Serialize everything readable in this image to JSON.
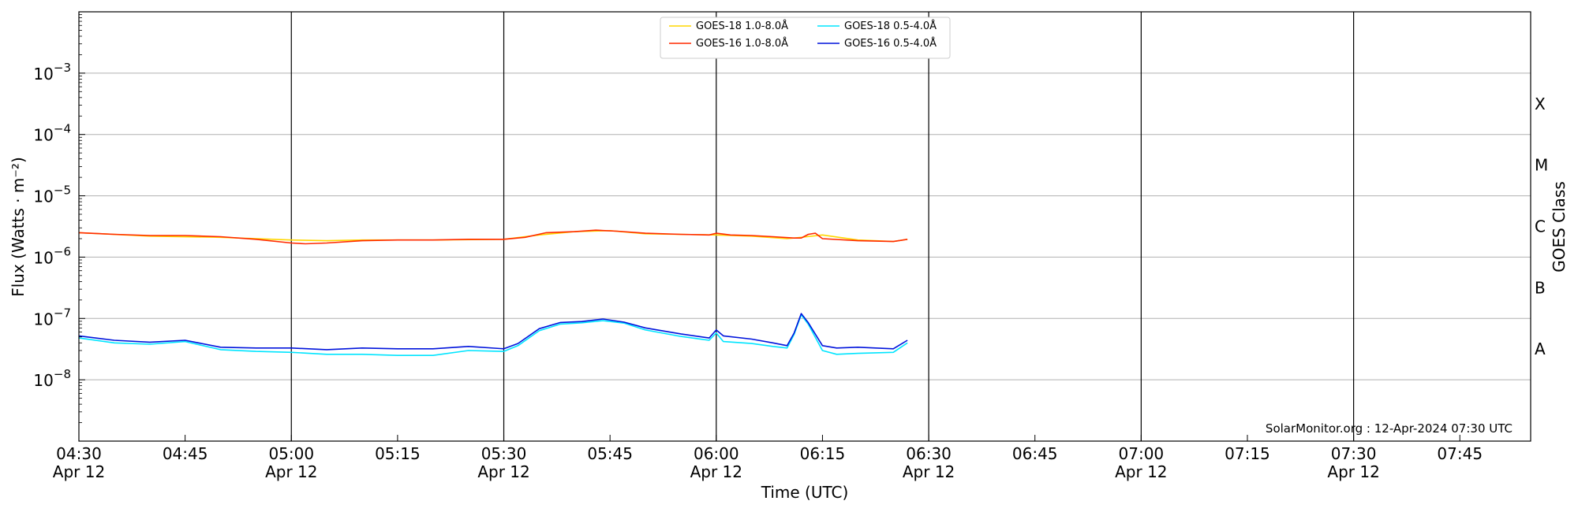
{
  "chart_data": {
    "type": "line",
    "xlabel": "Time (UTC)",
    "ylabel": "Flux (Watts · m⁻²)",
    "y2label": "GOES Class",
    "yscale": "log",
    "ylim": [
      1e-09,
      0.01
    ],
    "xlim": [
      "04:30",
      "07:55"
    ],
    "x_ticks": [
      {
        "time": "04:30",
        "line1": "04:30",
        "line2": "Apr 12"
      },
      {
        "time": "04:45",
        "line1": "04:45",
        "line2": ""
      },
      {
        "time": "05:00",
        "line1": "05:00",
        "line2": "Apr 12"
      },
      {
        "time": "05:15",
        "line1": "05:15",
        "line2": ""
      },
      {
        "time": "05:30",
        "line1": "05:30",
        "line2": "Apr 12"
      },
      {
        "time": "05:45",
        "line1": "05:45",
        "line2": ""
      },
      {
        "time": "06:00",
        "line1": "06:00",
        "line2": "Apr 12"
      },
      {
        "time": "06:15",
        "line1": "06:15",
        "line2": ""
      },
      {
        "time": "06:30",
        "line1": "06:30",
        "line2": "Apr 12"
      },
      {
        "time": "06:45",
        "line1": "06:45",
        "line2": ""
      },
      {
        "time": "07:00",
        "line1": "07:00",
        "line2": "Apr 12"
      },
      {
        "time": "07:15",
        "line1": "07:15",
        "line2": ""
      },
      {
        "time": "07:30",
        "line1": "07:30",
        "line2": "Apr 12"
      },
      {
        "time": "07:45",
        "line1": "07:45",
        "line2": ""
      }
    ],
    "y_ticks": [
      {
        "value": 1e-08,
        "mantissa": "10",
        "exp": "−8"
      },
      {
        "value": 1e-07,
        "mantissa": "10",
        "exp": "−7"
      },
      {
        "value": 1e-06,
        "mantissa": "10",
        "exp": "−6"
      },
      {
        "value": 1e-05,
        "mantissa": "10",
        "exp": "−5"
      },
      {
        "value": 0.0001,
        "mantissa": "10",
        "exp": "−4"
      },
      {
        "value": 0.001,
        "mantissa": "10",
        "exp": "−3"
      }
    ],
    "goes_classes": [
      {
        "label": "A",
        "value": 3.16e-08
      },
      {
        "label": "B",
        "value": 3.16e-07
      },
      {
        "label": "C",
        "value": 3.16e-06
      },
      {
        "label": "M",
        "value": 3.16e-05
      },
      {
        "label": "X",
        "value": 0.000316
      }
    ],
    "vertical_lines": [
      "05:00",
      "05:30",
      "06:00",
      "06:30",
      "07:00",
      "07:30"
    ],
    "grid": "horizontal",
    "legend_position": "top-center",
    "credit": "SolarMonitor.org : 12-Apr-2024 07:30 UTC",
    "series": [
      {
        "name": "GOES-18 1.0-8.0Å",
        "color": "#ffd700",
        "x": [
          "04:30",
          "04:40",
          "04:50",
          "05:00",
          "05:05",
          "05:10",
          "05:20",
          "05:30",
          "05:35",
          "05:40",
          "05:45",
          "05:50",
          "06:00",
          "06:05",
          "06:10",
          "06:12",
          "06:15",
          "06:20",
          "06:25",
          "06:27"
        ],
        "values": [
          2.5e-06,
          2.2e-06,
          2.1e-06,
          1.9e-06,
          1.85e-06,
          1.9e-06,
          1.9e-06,
          1.95e-06,
          2.3e-06,
          2.6e-06,
          2.7e-06,
          2.4e-06,
          2.3e-06,
          2.2e-06,
          2e-06,
          2.1e-06,
          2.3e-06,
          1.9e-06,
          1.8e-06,
          1.95e-06
        ]
      },
      {
        "name": "GOES-16 1.0-8.0Å",
        "color": "#ff2a00",
        "x": [
          "04:30",
          "04:35",
          "04:40",
          "04:45",
          "04:50",
          "04:55",
          "05:00",
          "05:02",
          "05:05",
          "05:10",
          "05:15",
          "05:20",
          "05:25",
          "05:30",
          "05:33",
          "05:36",
          "05:40",
          "05:43",
          "05:46",
          "05:50",
          "05:55",
          "05:59",
          "06:00",
          "06:02",
          "06:05",
          "06:08",
          "06:11",
          "06:12",
          "06:13",
          "06:14",
          "06:15",
          "06:20",
          "06:25",
          "06:27"
        ],
        "values": [
          2.5e-06,
          2.35e-06,
          2.25e-06,
          2.25e-06,
          2.15e-06,
          1.95e-06,
          1.7e-06,
          1.65e-06,
          1.7e-06,
          1.85e-06,
          1.9e-06,
          1.9e-06,
          1.95e-06,
          1.95e-06,
          2.1e-06,
          2.5e-06,
          2.6e-06,
          2.75e-06,
          2.65e-06,
          2.45e-06,
          2.35e-06,
          2.3e-06,
          2.45e-06,
          2.3e-06,
          2.25e-06,
          2.15e-06,
          2.05e-06,
          2.05e-06,
          2.35e-06,
          2.45e-06,
          2e-06,
          1.85e-06,
          1.8e-06,
          1.95e-06
        ]
      },
      {
        "name": "GOES-18 0.5-4.0Å",
        "color": "#00e5ff",
        "x": [
          "04:30",
          "04:35",
          "04:40",
          "04:45",
          "04:50",
          "04:55",
          "05:00",
          "05:05",
          "05:10",
          "05:15",
          "05:20",
          "05:25",
          "05:30",
          "05:32",
          "05:35",
          "05:38",
          "05:41",
          "05:44",
          "05:47",
          "05:50",
          "05:55",
          "05:59",
          "06:00",
          "06:01",
          "06:05",
          "06:08",
          "06:10",
          "06:11",
          "06:12",
          "06:13",
          "06:15",
          "06:17",
          "06:20",
          "06:25",
          "06:27"
        ],
        "values": [
          4.8e-08,
          4e-08,
          3.8e-08,
          4.2e-08,
          3.1e-08,
          2.9e-08,
          2.8e-08,
          2.6e-08,
          2.6e-08,
          2.5e-08,
          2.5e-08,
          3e-08,
          2.9e-08,
          3.6e-08,
          6.3e-08,
          8.1e-08,
          8.5e-08,
          9.2e-08,
          8.4e-08,
          6.5e-08,
          5.1e-08,
          4.4e-08,
          5.8e-08,
          4.2e-08,
          3.9e-08,
          3.5e-08,
          3.3e-08,
          5.5e-08,
          1.15e-07,
          8e-08,
          3e-08,
          2.6e-08,
          2.7e-08,
          2.8e-08,
          4e-08
        ]
      },
      {
        "name": "GOES-16 0.5-4.0Å",
        "color": "#0014dc",
        "x": [
          "04:30",
          "04:35",
          "04:40",
          "04:45",
          "04:50",
          "04:55",
          "05:00",
          "05:05",
          "05:10",
          "05:15",
          "05:20",
          "05:25",
          "05:30",
          "05:32",
          "05:35",
          "05:38",
          "05:41",
          "05:44",
          "05:47",
          "05:50",
          "05:55",
          "05:59",
          "06:00",
          "06:01",
          "06:05",
          "06:08",
          "06:10",
          "06:11",
          "06:12",
          "06:13",
          "06:15",
          "06:17",
          "06:20",
          "06:25",
          "06:27"
        ],
        "values": [
          5.2e-08,
          4.4e-08,
          4.1e-08,
          4.4e-08,
          3.4e-08,
          3.3e-08,
          3.3e-08,
          3.1e-08,
          3.3e-08,
          3.2e-08,
          3.2e-08,
          3.5e-08,
          3.2e-08,
          3.9e-08,
          6.8e-08,
          8.6e-08,
          8.9e-08,
          9.8e-08,
          8.7e-08,
          7e-08,
          5.6e-08,
          4.8e-08,
          6.5e-08,
          5.2e-08,
          4.6e-08,
          4e-08,
          3.6e-08,
          5.8e-08,
          1.2e-07,
          8.5e-08,
          3.6e-08,
          3.3e-08,
          3.4e-08,
          3.2e-08,
          4.4e-08
        ]
      }
    ]
  }
}
